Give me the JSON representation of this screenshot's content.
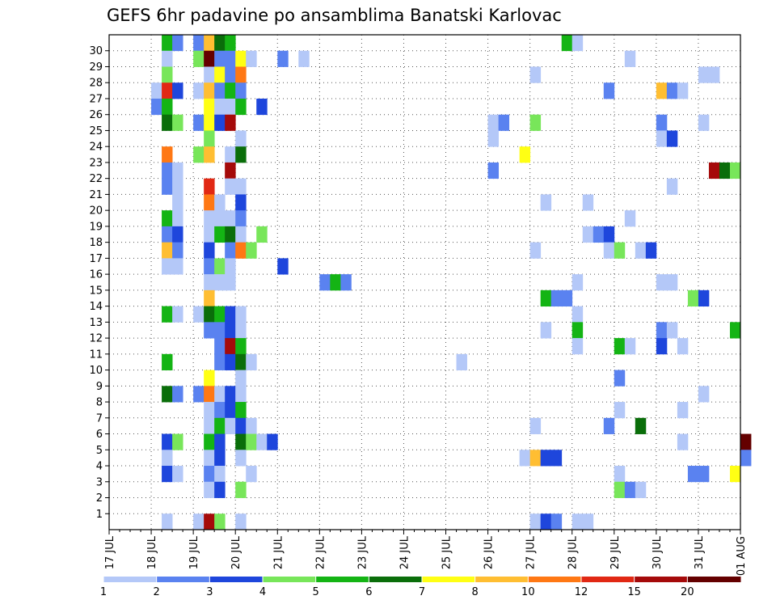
{
  "title": "GEFS 6hr padavine po ansamblima Banatski Karlovac",
  "chart_data": {
    "type": "heatmap",
    "title": "GEFS 6hr padavine po ansamblima Banatski Karlovac",
    "x_ticks": [
      "17 JUL",
      "18 JUL",
      "19 JUL",
      "20 JUL",
      "21 JUL",
      "22 JUL",
      "23 JUL",
      "24 JUL",
      "25 JUL",
      "26 JUL",
      "27 JUL",
      "28 JUL",
      "29 JUL",
      "30 JUL",
      "31 JUL",
      "01 AUG"
    ],
    "y_ticks": [
      1,
      2,
      3,
      4,
      5,
      6,
      7,
      8,
      9,
      10,
      11,
      12,
      13,
      14,
      15,
      16,
      17,
      18,
      19,
      20,
      21,
      22,
      23,
      24,
      25,
      26,
      27,
      28,
      29,
      30
    ],
    "x_step": "6hr",
    "y_label_meaning": "ensemble member",
    "colorbar": {
      "ticks": [
        "1",
        "2",
        "3",
        "4",
        "5",
        "6",
        "7",
        "8",
        "10",
        "12",
        "15",
        "20"
      ],
      "bounds": [
        1,
        2,
        3,
        4,
        5,
        6,
        7,
        8,
        10,
        12,
        15,
        20
      ],
      "colors": [
        "#b4c8f8",
        "#5a82f0",
        "#1e46dc",
        "#78e65a",
        "#14b414",
        "#0a6e0a",
        "#ffff14",
        "#ffbe32",
        "#ff7814",
        "#e12814",
        "#a50a0a",
        "#640000"
      ]
    },
    "cells": [
      {
        "member": 30,
        "step": 5,
        "cls": 4
      },
      {
        "member": 30,
        "step": 6,
        "cls": 1
      },
      {
        "member": 30,
        "step": 8,
        "cls": 1
      },
      {
        "member": 30,
        "step": 9,
        "cls": 7
      },
      {
        "member": 30,
        "step": 10,
        "cls": 5
      },
      {
        "member": 30,
        "step": 11,
        "cls": 4
      },
      {
        "member": 30,
        "step": 43,
        "cls": 4
      },
      {
        "member": 30,
        "step": 44,
        "cls": 0
      },
      {
        "member": 29,
        "step": 5,
        "cls": 0
      },
      {
        "member": 29,
        "step": 8,
        "cls": 3
      },
      {
        "member": 29,
        "step": 9,
        "cls": 11
      },
      {
        "member": 29,
        "step": 10,
        "cls": 1
      },
      {
        "member": 29,
        "step": 11,
        "cls": 1
      },
      {
        "member": 29,
        "step": 12,
        "cls": 6
      },
      {
        "member": 29,
        "step": 13,
        "cls": 0
      },
      {
        "member": 29,
        "step": 16,
        "cls": 1
      },
      {
        "member": 29,
        "step": 18,
        "cls": 0
      },
      {
        "member": 29,
        "step": 49,
        "cls": 0
      },
      {
        "member": 28,
        "step": 5,
        "cls": 3
      },
      {
        "member": 28,
        "step": 9,
        "cls": 0
      },
      {
        "member": 28,
        "step": 10,
        "cls": 6
      },
      {
        "member": 28,
        "step": 11,
        "cls": 1
      },
      {
        "member": 28,
        "step": 12,
        "cls": 8
      },
      {
        "member": 28,
        "step": 40,
        "cls": 0
      },
      {
        "member": 28,
        "step": 56,
        "cls": 0
      },
      {
        "member": 28,
        "step": 57,
        "cls": 0
      },
      {
        "member": 27,
        "step": 4,
        "cls": 0
      },
      {
        "member": 27,
        "step": 5,
        "cls": 9
      },
      {
        "member": 27,
        "step": 6,
        "cls": 2
      },
      {
        "member": 27,
        "step": 8,
        "cls": 0
      },
      {
        "member": 27,
        "step": 9,
        "cls": 7
      },
      {
        "member": 27,
        "step": 10,
        "cls": 1
      },
      {
        "member": 27,
        "step": 11,
        "cls": 4
      },
      {
        "member": 27,
        "step": 12,
        "cls": 1
      },
      {
        "member": 27,
        "step": 47,
        "cls": 1
      },
      {
        "member": 27,
        "step": 52,
        "cls": 7
      },
      {
        "member": 27,
        "step": 53,
        "cls": 1
      },
      {
        "member": 27,
        "step": 54,
        "cls": 0
      },
      {
        "member": 26,
        "step": 4,
        "cls": 1
      },
      {
        "member": 26,
        "step": 5,
        "cls": 4
      },
      {
        "member": 26,
        "step": 9,
        "cls": 6
      },
      {
        "member": 26,
        "step": 10,
        "cls": 0
      },
      {
        "member": 26,
        "step": 11,
        "cls": 0
      },
      {
        "member": 26,
        "step": 12,
        "cls": 4
      },
      {
        "member": 26,
        "step": 14,
        "cls": 2
      },
      {
        "member": 25,
        "step": 5,
        "cls": 5
      },
      {
        "member": 25,
        "step": 6,
        "cls": 3
      },
      {
        "member": 25,
        "step": 8,
        "cls": 1
      },
      {
        "member": 25,
        "step": 9,
        "cls": 6
      },
      {
        "member": 25,
        "step": 10,
        "cls": 2
      },
      {
        "member": 25,
        "step": 11,
        "cls": 10
      },
      {
        "member": 25,
        "step": 36,
        "cls": 0
      },
      {
        "member": 25,
        "step": 37,
        "cls": 1
      },
      {
        "member": 25,
        "step": 40,
        "cls": 3
      },
      {
        "member": 25,
        "step": 52,
        "cls": 1
      },
      {
        "member": 25,
        "step": 56,
        "cls": 0
      },
      {
        "member": 24,
        "step": 9,
        "cls": 3
      },
      {
        "member": 24,
        "step": 12,
        "cls": 0
      },
      {
        "member": 24,
        "step": 36,
        "cls": 0
      },
      {
        "member": 24,
        "step": 52,
        "cls": 0
      },
      {
        "member": 24,
        "step": 53,
        "cls": 2
      },
      {
        "member": 23,
        "step": 5,
        "cls": 8
      },
      {
        "member": 23,
        "step": 8,
        "cls": 3
      },
      {
        "member": 23,
        "step": 9,
        "cls": 7
      },
      {
        "member": 23,
        "step": 11,
        "cls": 0
      },
      {
        "member": 23,
        "step": 12,
        "cls": 5
      },
      {
        "member": 23,
        "step": 39,
        "cls": 6
      },
      {
        "member": 22,
        "step": 5,
        "cls": 1
      },
      {
        "member": 22,
        "step": 6,
        "cls": 0
      },
      {
        "member": 22,
        "step": 11,
        "cls": 10
      },
      {
        "member": 22,
        "step": 36,
        "cls": 1
      },
      {
        "member": 22,
        "step": 57,
        "cls": 10
      },
      {
        "member": 22,
        "step": 58,
        "cls": 5
      },
      {
        "member": 22,
        "step": 59,
        "cls": 3
      },
      {
        "member": 21,
        "step": 5,
        "cls": 1
      },
      {
        "member": 21,
        "step": 6,
        "cls": 0
      },
      {
        "member": 21,
        "step": 9,
        "cls": 9
      },
      {
        "member": 21,
        "step": 11,
        "cls": 0
      },
      {
        "member": 21,
        "step": 12,
        "cls": 0
      },
      {
        "member": 21,
        "step": 53,
        "cls": 0
      },
      {
        "member": 20,
        "step": 6,
        "cls": 0
      },
      {
        "member": 20,
        "step": 9,
        "cls": 8
      },
      {
        "member": 20,
        "step": 10,
        "cls": 0
      },
      {
        "member": 20,
        "step": 12,
        "cls": 2
      },
      {
        "member": 20,
        "step": 41,
        "cls": 0
      },
      {
        "member": 20,
        "step": 45,
        "cls": 0
      },
      {
        "member": 19,
        "step": 5,
        "cls": 4
      },
      {
        "member": 19,
        "step": 6,
        "cls": 0
      },
      {
        "member": 19,
        "step": 9,
        "cls": 0
      },
      {
        "member": 19,
        "step": 10,
        "cls": 0
      },
      {
        "member": 19,
        "step": 11,
        "cls": 0
      },
      {
        "member": 19,
        "step": 12,
        "cls": 1
      },
      {
        "member": 19,
        "step": 49,
        "cls": 0
      },
      {
        "member": 18,
        "step": 5,
        "cls": 1
      },
      {
        "member": 18,
        "step": 6,
        "cls": 2
      },
      {
        "member": 18,
        "step": 9,
        "cls": 0
      },
      {
        "member": 18,
        "step": 10,
        "cls": 4
      },
      {
        "member": 18,
        "step": 11,
        "cls": 5
      },
      {
        "member": 18,
        "step": 12,
        "cls": 0
      },
      {
        "member": 18,
        "step": 14,
        "cls": 3
      },
      {
        "member": 18,
        "step": 45,
        "cls": 0
      },
      {
        "member": 18,
        "step": 46,
        "cls": 1
      },
      {
        "member": 18,
        "step": 47,
        "cls": 2
      },
      {
        "member": 17,
        "step": 5,
        "cls": 7
      },
      {
        "member": 17,
        "step": 6,
        "cls": 1
      },
      {
        "member": 17,
        "step": 9,
        "cls": 2
      },
      {
        "member": 17,
        "step": 11,
        "cls": 1
      },
      {
        "member": 17,
        "step": 12,
        "cls": 8
      },
      {
        "member": 17,
        "step": 13,
        "cls": 3
      },
      {
        "member": 17,
        "step": 40,
        "cls": 0
      },
      {
        "member": 17,
        "step": 47,
        "cls": 0
      },
      {
        "member": 17,
        "step": 48,
        "cls": 3
      },
      {
        "member": 17,
        "step": 50,
        "cls": 0
      },
      {
        "member": 17,
        "step": 51,
        "cls": 2
      },
      {
        "member": 16,
        "step": 5,
        "cls": 0
      },
      {
        "member": 16,
        "step": 6,
        "cls": 0
      },
      {
        "member": 16,
        "step": 9,
        "cls": 1
      },
      {
        "member": 16,
        "step": 10,
        "cls": 3
      },
      {
        "member": 16,
        "step": 11,
        "cls": 0
      },
      {
        "member": 16,
        "step": 16,
        "cls": 2
      },
      {
        "member": 15,
        "step": 9,
        "cls": 0
      },
      {
        "member": 15,
        "step": 10,
        "cls": 0
      },
      {
        "member": 15,
        "step": 11,
        "cls": 0
      },
      {
        "member": 15,
        "step": 20,
        "cls": 1
      },
      {
        "member": 15,
        "step": 21,
        "cls": 4
      },
      {
        "member": 15,
        "step": 22,
        "cls": 1
      },
      {
        "member": 15,
        "step": 44,
        "cls": 0
      },
      {
        "member": 15,
        "step": 52,
        "cls": 0
      },
      {
        "member": 15,
        "step": 53,
        "cls": 0
      },
      {
        "member": 14,
        "step": 9,
        "cls": 7
      },
      {
        "member": 14,
        "step": 41,
        "cls": 4
      },
      {
        "member": 14,
        "step": 42,
        "cls": 1
      },
      {
        "member": 14,
        "step": 43,
        "cls": 1
      },
      {
        "member": 14,
        "step": 55,
        "cls": 3
      },
      {
        "member": 14,
        "step": 56,
        "cls": 2
      },
      {
        "member": 13,
        "step": 5,
        "cls": 4
      },
      {
        "member": 13,
        "step": 6,
        "cls": 0
      },
      {
        "member": 13,
        "step": 8,
        "cls": 0
      },
      {
        "member": 13,
        "step": 9,
        "cls": 5
      },
      {
        "member": 13,
        "step": 10,
        "cls": 4
      },
      {
        "member": 13,
        "step": 11,
        "cls": 2
      },
      {
        "member": 13,
        "step": 12,
        "cls": 0
      },
      {
        "member": 13,
        "step": 44,
        "cls": 0
      },
      {
        "member": 12,
        "step": 9,
        "cls": 1
      },
      {
        "member": 12,
        "step": 10,
        "cls": 1
      },
      {
        "member": 12,
        "step": 11,
        "cls": 2
      },
      {
        "member": 12,
        "step": 12,
        "cls": 0
      },
      {
        "member": 12,
        "step": 41,
        "cls": 0
      },
      {
        "member": 12,
        "step": 44,
        "cls": 4
      },
      {
        "member": 12,
        "step": 52,
        "cls": 1
      },
      {
        "member": 12,
        "step": 53,
        "cls": 0
      },
      {
        "member": 12,
        "step": 59,
        "cls": 4
      },
      {
        "member": 11,
        "step": 10,
        "cls": 1
      },
      {
        "member": 11,
        "step": 11,
        "cls": 10
      },
      {
        "member": 11,
        "step": 12,
        "cls": 4
      },
      {
        "member": 11,
        "step": 44,
        "cls": 0
      },
      {
        "member": 11,
        "step": 48,
        "cls": 4
      },
      {
        "member": 11,
        "step": 49,
        "cls": 0
      },
      {
        "member": 11,
        "step": 52,
        "cls": 2
      },
      {
        "member": 11,
        "step": 54,
        "cls": 0
      },
      {
        "member": 10,
        "step": 5,
        "cls": 4
      },
      {
        "member": 10,
        "step": 10,
        "cls": 1
      },
      {
        "member": 10,
        "step": 11,
        "cls": 2
      },
      {
        "member": 10,
        "step": 12,
        "cls": 5
      },
      {
        "member": 10,
        "step": 13,
        "cls": 0
      },
      {
        "member": 10,
        "step": 33,
        "cls": 0
      },
      {
        "member": 9,
        "step": 9,
        "cls": 6
      },
      {
        "member": 9,
        "step": 12,
        "cls": 0
      },
      {
        "member": 9,
        "step": 48,
        "cls": 1
      },
      {
        "member": 8,
        "step": 5,
        "cls": 5
      },
      {
        "member": 8,
        "step": 6,
        "cls": 1
      },
      {
        "member": 8,
        "step": 8,
        "cls": 1
      },
      {
        "member": 8,
        "step": 9,
        "cls": 8
      },
      {
        "member": 8,
        "step": 10,
        "cls": 0
      },
      {
        "member": 8,
        "step": 11,
        "cls": 2
      },
      {
        "member": 8,
        "step": 12,
        "cls": 0
      },
      {
        "member": 8,
        "step": 56,
        "cls": 0
      },
      {
        "member": 7,
        "step": 9,
        "cls": 0
      },
      {
        "member": 7,
        "step": 10,
        "cls": 1
      },
      {
        "member": 7,
        "step": 11,
        "cls": 2
      },
      {
        "member": 7,
        "step": 12,
        "cls": 4
      },
      {
        "member": 7,
        "step": 48,
        "cls": 0
      },
      {
        "member": 7,
        "step": 54,
        "cls": 0
      },
      {
        "member": 6,
        "step": 9,
        "cls": 0
      },
      {
        "member": 6,
        "step": 10,
        "cls": 4
      },
      {
        "member": 6,
        "step": 11,
        "cls": 0
      },
      {
        "member": 6,
        "step": 12,
        "cls": 2
      },
      {
        "member": 6,
        "step": 13,
        "cls": 0
      },
      {
        "member": 6,
        "step": 40,
        "cls": 0
      },
      {
        "member": 6,
        "step": 47,
        "cls": 1
      },
      {
        "member": 6,
        "step": 50,
        "cls": 5
      },
      {
        "member": 5,
        "step": 5,
        "cls": 2
      },
      {
        "member": 5,
        "step": 6,
        "cls": 3
      },
      {
        "member": 5,
        "step": 9,
        "cls": 4
      },
      {
        "member": 5,
        "step": 10,
        "cls": 2
      },
      {
        "member": 5,
        "step": 12,
        "cls": 5
      },
      {
        "member": 5,
        "step": 13,
        "cls": 3
      },
      {
        "member": 5,
        "step": 14,
        "cls": 0
      },
      {
        "member": 5,
        "step": 15,
        "cls": 2
      },
      {
        "member": 5,
        "step": 54,
        "cls": 0
      },
      {
        "member": 5,
        "step": 60,
        "cls": 11
      },
      {
        "member": 4,
        "step": 5,
        "cls": 0
      },
      {
        "member": 4,
        "step": 9,
        "cls": 0
      },
      {
        "member": 4,
        "step": 10,
        "cls": 2
      },
      {
        "member": 4,
        "step": 12,
        "cls": 0
      },
      {
        "member": 4,
        "step": 39,
        "cls": 0
      },
      {
        "member": 4,
        "step": 40,
        "cls": 7
      },
      {
        "member": 4,
        "step": 41,
        "cls": 2
      },
      {
        "member": 4,
        "step": 42,
        "cls": 2
      },
      {
        "member": 4,
        "step": 60,
        "cls": 1
      },
      {
        "member": 3,
        "step": 5,
        "cls": 2
      },
      {
        "member": 3,
        "step": 6,
        "cls": 0
      },
      {
        "member": 3,
        "step": 9,
        "cls": 1
      },
      {
        "member": 3,
        "step": 10,
        "cls": 0
      },
      {
        "member": 3,
        "step": 13,
        "cls": 0
      },
      {
        "member": 3,
        "step": 48,
        "cls": 0
      },
      {
        "member": 3,
        "step": 55,
        "cls": 1
      },
      {
        "member": 3,
        "step": 56,
        "cls": 1
      },
      {
        "member": 3,
        "step": 59,
        "cls": 6
      },
      {
        "member": 2,
        "step": 9,
        "cls": 0
      },
      {
        "member": 2,
        "step": 10,
        "cls": 2
      },
      {
        "member": 2,
        "step": 12,
        "cls": 3
      },
      {
        "member": 2,
        "step": 48,
        "cls": 3
      },
      {
        "member": 2,
        "step": 49,
        "cls": 1
      },
      {
        "member": 2,
        "step": 50,
        "cls": 0
      },
      {
        "member": 0,
        "step": 5,
        "cls": 0
      },
      {
        "member": 0,
        "step": 8,
        "cls": 0
      },
      {
        "member": 0,
        "step": 9,
        "cls": 10
      },
      {
        "member": 0,
        "step": 10,
        "cls": 3
      },
      {
        "member": 0,
        "step": 12,
        "cls": 0
      },
      {
        "member": 0,
        "step": 40,
        "cls": 0
      },
      {
        "member": 0,
        "step": 41,
        "cls": 2
      },
      {
        "member": 0,
        "step": 42,
        "cls": 1
      },
      {
        "member": 0,
        "step": 44,
        "cls": 0
      },
      {
        "member": 0,
        "step": 45,
        "cls": 0
      }
    ]
  }
}
